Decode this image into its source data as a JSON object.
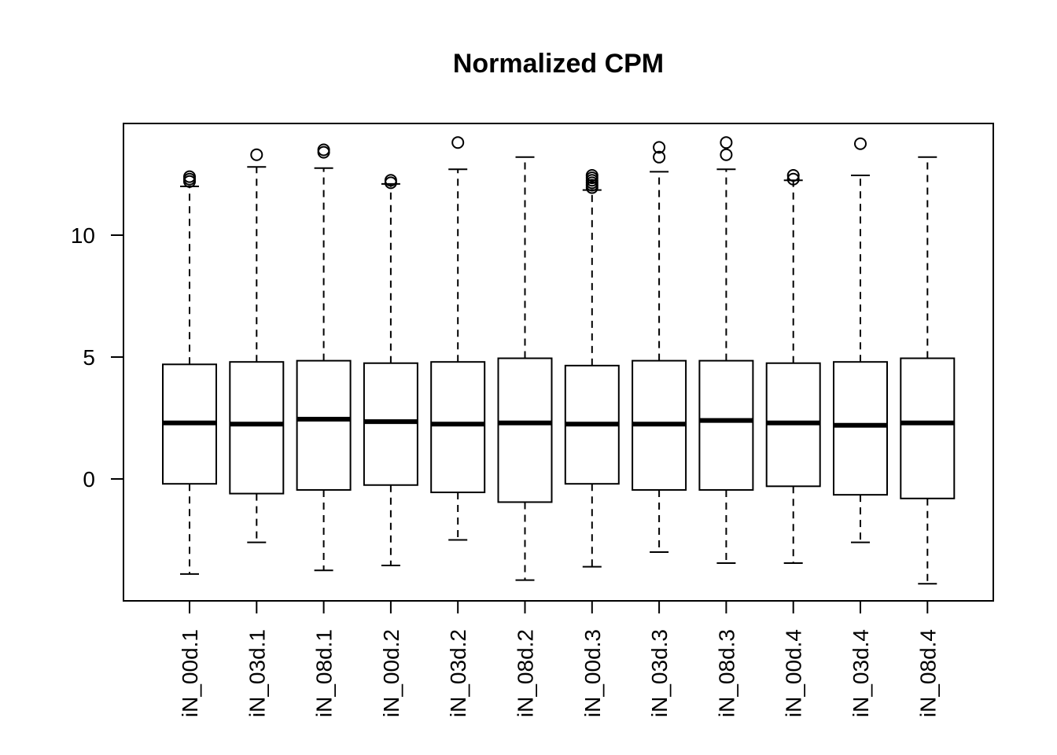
{
  "chart_data": {
    "type": "boxplot",
    "title": "Normalized CPM",
    "xlabel": "",
    "ylabel": "",
    "ylim": [
      -5,
      14.5
    ],
    "yticks": [
      0,
      5,
      10
    ],
    "grid": false,
    "categories": [
      "iN_00d.1",
      "iN_03d.1",
      "iN_08d.1",
      "iN_00d.2",
      "iN_03d.2",
      "iN_08d.2",
      "iN_00d.3",
      "iN_03d.3",
      "iN_08d.3",
      "iN_00d.4",
      "iN_03d.4",
      "iN_08d.4"
    ],
    "boxes": [
      {
        "min": -3.9,
        "q1": -0.2,
        "median": 2.3,
        "q3": 4.7,
        "max": 12.0,
        "outliers": [
          12.2,
          12.3,
          12.4
        ]
      },
      {
        "min": -2.6,
        "q1": -0.6,
        "median": 2.25,
        "q3": 4.8,
        "max": 12.8,
        "outliers": [
          13.3
        ]
      },
      {
        "min": -3.75,
        "q1": -0.45,
        "median": 2.45,
        "q3": 4.85,
        "max": 12.75,
        "outliers": [
          13.4,
          13.5
        ]
      },
      {
        "min": -3.55,
        "q1": -0.25,
        "median": 2.35,
        "q3": 4.75,
        "max": 12.1,
        "outliers": [
          12.15,
          12.25
        ]
      },
      {
        "min": -2.5,
        "q1": -0.55,
        "median": 2.25,
        "q3": 4.8,
        "max": 12.7,
        "outliers": [
          13.8
        ]
      },
      {
        "min": -4.15,
        "q1": -0.95,
        "median": 2.3,
        "q3": 4.95,
        "max": 13.2,
        "outliers": []
      },
      {
        "min": -3.6,
        "q1": -0.2,
        "median": 2.25,
        "q3": 4.65,
        "max": 11.85,
        "outliers": [
          11.95,
          12.05,
          12.15,
          12.25,
          12.35,
          12.45
        ]
      },
      {
        "min": -3.0,
        "q1": -0.45,
        "median": 2.25,
        "q3": 4.85,
        "max": 12.6,
        "outliers": [
          13.2,
          13.6
        ]
      },
      {
        "min": -3.45,
        "q1": -0.45,
        "median": 2.4,
        "q3": 4.85,
        "max": 12.7,
        "outliers": [
          13.3,
          13.8
        ]
      },
      {
        "min": -3.45,
        "q1": -0.3,
        "median": 2.3,
        "q3": 4.75,
        "max": 12.25,
        "outliers": [
          12.3,
          12.45
        ]
      },
      {
        "min": -2.6,
        "q1": -0.65,
        "median": 2.2,
        "q3": 4.8,
        "max": 12.45,
        "outliers": [
          13.75
        ]
      },
      {
        "min": -4.3,
        "q1": -0.8,
        "median": 2.3,
        "q3": 4.95,
        "max": 13.2,
        "outliers": []
      }
    ]
  }
}
